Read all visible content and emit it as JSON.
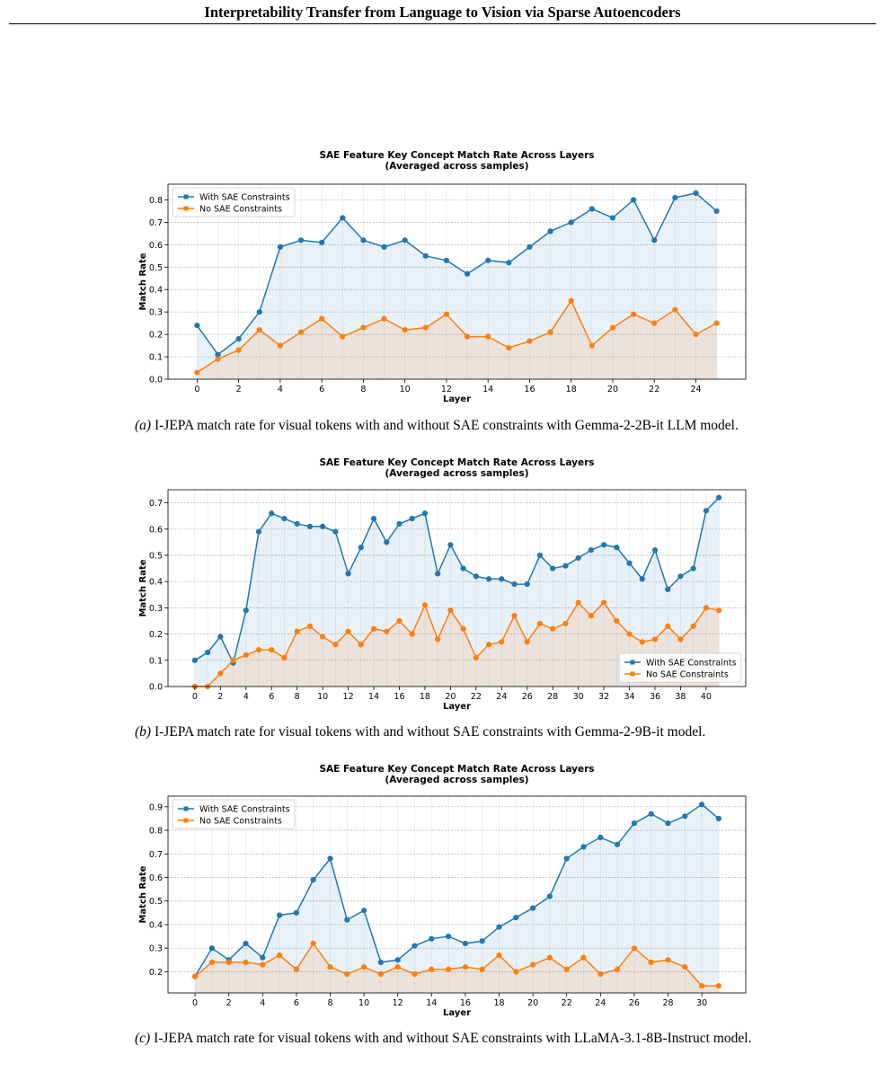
{
  "header": {
    "title": "Interpretability Transfer from Language to Vision via Sparse Autoencoders"
  },
  "chart_data": [
    {
      "type": "line",
      "title": "SAE Feature Key Concept Match Rate Across Layers",
      "subtitle": "(Averaged across samples)",
      "xlabel": "Layer",
      "ylabel": "Match Rate",
      "x": [
        0,
        1,
        2,
        3,
        4,
        5,
        6,
        7,
        8,
        9,
        10,
        11,
        12,
        13,
        14,
        15,
        16,
        17,
        18,
        19,
        20,
        21,
        22,
        23,
        24,
        25
      ],
      "xticks": [
        0,
        2,
        4,
        6,
        8,
        10,
        12,
        14,
        16,
        18,
        20,
        22,
        24
      ],
      "xlim": [
        -1.4,
        26.4
      ],
      "ylim": [
        0,
        0.87
      ],
      "yticks": [
        0.0,
        0.1,
        0.2,
        0.3,
        0.4,
        0.5,
        0.6,
        0.7,
        0.8
      ],
      "grid": true,
      "legend_position": "top-left",
      "series": [
        {
          "name": "With SAE Constraints",
          "color": "#1f77b4",
          "values": [
            0.24,
            0.11,
            0.18,
            0.3,
            0.59,
            0.62,
            0.61,
            0.72,
            0.62,
            0.59,
            0.62,
            0.55,
            0.53,
            0.47,
            0.53,
            0.52,
            0.59,
            0.66,
            0.7,
            0.76,
            0.72,
            0.8,
            0.62,
            0.81,
            0.83,
            0.75
          ]
        },
        {
          "name": "No SAE Constraints",
          "color": "#ff7f0e",
          "values": [
            0.03,
            0.09,
            0.13,
            0.22,
            0.15,
            0.21,
            0.27,
            0.19,
            0.23,
            0.27,
            0.22,
            0.23,
            0.29,
            0.19,
            0.19,
            0.14,
            0.17,
            0.21,
            0.35,
            0.15,
            0.23,
            0.29,
            0.25,
            0.31,
            0.2,
            0.25
          ]
        }
      ]
    },
    {
      "type": "line",
      "title": "SAE Feature Key Concept Match Rate Across Layers",
      "subtitle": "(Averaged across samples)",
      "xlabel": "Layer",
      "ylabel": "Match Rate",
      "x": [
        0,
        1,
        2,
        3,
        4,
        5,
        6,
        7,
        8,
        9,
        10,
        11,
        12,
        13,
        14,
        15,
        16,
        17,
        18,
        19,
        20,
        21,
        22,
        23,
        24,
        25,
        26,
        27,
        28,
        29,
        30,
        31,
        32,
        33,
        34,
        35,
        36,
        37,
        38,
        39,
        40,
        41
      ],
      "xticks": [
        0,
        2,
        4,
        6,
        8,
        10,
        12,
        14,
        16,
        18,
        20,
        22,
        24,
        26,
        28,
        30,
        32,
        34,
        36,
        38,
        40
      ],
      "xlim": [
        -2.1,
        43.1
      ],
      "ylim": [
        0,
        0.75
      ],
      "yticks": [
        0.0,
        0.1,
        0.2,
        0.3,
        0.4,
        0.5,
        0.6,
        0.7
      ],
      "grid": true,
      "legend_position": "bottom-right",
      "series": [
        {
          "name": "With SAE Constraints",
          "color": "#1f77b4",
          "values": [
            0.1,
            0.13,
            0.19,
            0.09,
            0.29,
            0.59,
            0.66,
            0.64,
            0.62,
            0.61,
            0.61,
            0.59,
            0.43,
            0.53,
            0.64,
            0.55,
            0.62,
            0.64,
            0.66,
            0.43,
            0.54,
            0.45,
            0.42,
            0.41,
            0.41,
            0.39,
            0.39,
            0.5,
            0.45,
            0.46,
            0.49,
            0.52,
            0.54,
            0.53,
            0.47,
            0.41,
            0.52,
            0.37,
            0.42,
            0.45,
            0.67,
            0.72
          ]
        },
        {
          "name": "No SAE Constraints",
          "color": "#ff7f0e",
          "values": [
            0.0,
            0.0,
            0.05,
            0.1,
            0.12,
            0.14,
            0.14,
            0.11,
            0.21,
            0.23,
            0.19,
            0.16,
            0.21,
            0.16,
            0.22,
            0.21,
            0.25,
            0.2,
            0.31,
            0.18,
            0.29,
            0.22,
            0.11,
            0.16,
            0.17,
            0.27,
            0.17,
            0.24,
            0.22,
            0.24,
            0.32,
            0.27,
            0.32,
            0.25,
            0.2,
            0.17,
            0.18,
            0.23,
            0.18,
            0.23,
            0.3,
            0.29
          ]
        }
      ]
    },
    {
      "type": "line",
      "title": "SAE Feature Key Concept Match Rate Across Layers",
      "subtitle": "(Averaged across samples)",
      "xlabel": "Layer",
      "ylabel": "Match Rate",
      "x": [
        0,
        1,
        2,
        3,
        4,
        5,
        6,
        7,
        8,
        9,
        10,
        11,
        12,
        13,
        14,
        15,
        16,
        17,
        18,
        19,
        20,
        21,
        22,
        23,
        24,
        25,
        26,
        27,
        28,
        29,
        30,
        31
      ],
      "xticks": [
        0,
        2,
        4,
        6,
        8,
        10,
        12,
        14,
        16,
        18,
        20,
        22,
        24,
        26,
        28,
        30
      ],
      "xlim": [
        -1.6,
        32.6
      ],
      "ylim": [
        0.11,
        0.945
      ],
      "yticks": [
        0.2,
        0.3,
        0.4,
        0.5,
        0.6,
        0.7,
        0.8,
        0.9
      ],
      "grid": true,
      "legend_position": "top-left",
      "series": [
        {
          "name": "With SAE Constraints",
          "color": "#1f77b4",
          "values": [
            0.18,
            0.3,
            0.25,
            0.32,
            0.26,
            0.44,
            0.45,
            0.59,
            0.68,
            0.42,
            0.46,
            0.24,
            0.25,
            0.31,
            0.34,
            0.35,
            0.32,
            0.33,
            0.39,
            0.43,
            0.47,
            0.52,
            0.68,
            0.73,
            0.77,
            0.74,
            0.83,
            0.87,
            0.83,
            0.86,
            0.91,
            0.85
          ]
        },
        {
          "name": "No SAE Constraints",
          "color": "#ff7f0e",
          "values": [
            0.18,
            0.24,
            0.24,
            0.24,
            0.23,
            0.27,
            0.21,
            0.32,
            0.22,
            0.19,
            0.22,
            0.19,
            0.22,
            0.19,
            0.21,
            0.21,
            0.22,
            0.21,
            0.27,
            0.2,
            0.23,
            0.26,
            0.21,
            0.26,
            0.19,
            0.21,
            0.3,
            0.24,
            0.25,
            0.22,
            0.14,
            0.14
          ]
        }
      ]
    }
  ],
  "captions": [
    {
      "label": "(a)",
      "text": " I-JEPA match rate for visual tokens with and without SAE constraints with Gemma-2-2B-it LLM model."
    },
    {
      "label": "(b)",
      "text": " I-JEPA match rate for visual tokens with and without SAE constraints with Gemma-2-9B-it model."
    },
    {
      "label": "(c)",
      "text": " I-JEPA match rate for visual tokens with and without SAE constraints with LLaMA-3.1-8B-Instruct model."
    }
  ]
}
